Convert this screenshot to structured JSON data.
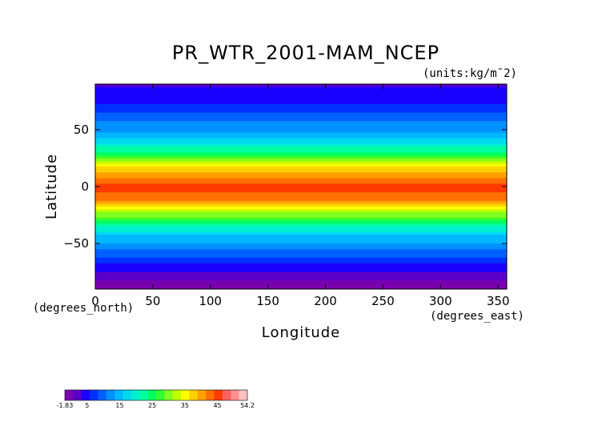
{
  "chart_data": {
    "type": "heatmap",
    "title": "PR_WTR_2001-MAM_NCEP",
    "units_label": "(units:kg/m¯2)",
    "xlabel": "Longitude",
    "ylabel": "Latitude",
    "x_unit_label": "(degrees_east)",
    "y_unit_label": "(degrees_north)",
    "xlim": [
      0,
      357.5
    ],
    "ylim": [
      -90,
      90
    ],
    "x_ticks": [
      "0",
      "50",
      "100",
      "150",
      "200",
      "250",
      "300",
      "350"
    ],
    "y_ticks": [
      "50",
      "0",
      "-50"
    ],
    "colorbar": {
      "min": -1.83,
      "max": 54.2,
      "tick_labels": [
        "-1.83",
        "5",
        "15",
        "25",
        "35",
        "45",
        "54.2"
      ],
      "colors": [
        "#7a00b0",
        "#5a00c8",
        "#1a00ff",
        "#0030ff",
        "#0060ff",
        "#0090ff",
        "#00b8ff",
        "#00d8f0",
        "#00f0d0",
        "#00ffa0",
        "#00ff60",
        "#30ff30",
        "#80ff20",
        "#c0ff00",
        "#ffff00",
        "#ffd000",
        "#ffa000",
        "#ff7000",
        "#ff3a00",
        "#ff6060",
        "#ff9090",
        "#ffc0c0"
      ]
    },
    "zonal_profile": {
      "lat": [
        90,
        75,
        60,
        45,
        30,
        15,
        0,
        -15,
        -30,
        -45,
        -60,
        -75,
        -90
      ],
      "value": [
        3,
        5,
        10,
        14,
        24,
        38,
        46,
        40,
        25,
        15,
        9,
        3,
        -1
      ]
    }
  }
}
